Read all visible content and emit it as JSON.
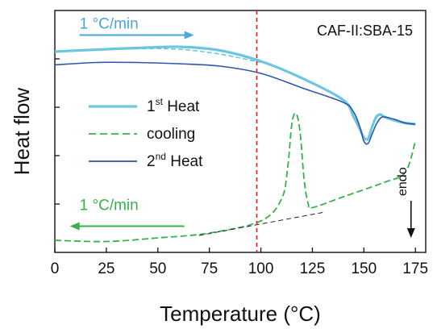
{
  "chart_data": {
    "type": "line",
    "title": "CAF-II:SBA-15",
    "xlabel": "Temperature (°C)",
    "ylabel": "Heat flow",
    "xlim": [
      0,
      180
    ],
    "ylim": [
      0,
      10
    ],
    "xticks": [
      "0",
      "25",
      "50",
      "75",
      "100",
      "125",
      "150",
      "175"
    ],
    "xtick_values": [
      0,
      25,
      50,
      75,
      100,
      125,
      150,
      175
    ],
    "ytick_values": [
      2,
      4,
      6,
      8
    ],
    "y_tick_labels_shown": false,
    "grid": false,
    "legend_position": "center-left",
    "legend": [
      {
        "text": "1",
        "sup": "st",
        "tail": " Heat",
        "series": "heat1"
      },
      {
        "text": "cooling",
        "sup": "",
        "tail": "",
        "series": "cooling"
      },
      {
        "text": "2",
        "sup": "nd",
        "tail": " Heat",
        "series": "heat2"
      }
    ],
    "series": [
      {
        "id": "heat1",
        "color": "#6cc6e0",
        "dash": "solid",
        "x": [
          0,
          20,
          40,
          60,
          80,
          100,
          120,
          140,
          145,
          148,
          150,
          152,
          154,
          156,
          158,
          160,
          165,
          170,
          175
        ],
        "y": [
          8.3,
          8.38,
          8.45,
          8.5,
          8.35,
          7.9,
          7.2,
          6.3,
          5.6,
          5.1,
          4.75,
          4.7,
          5.2,
          5.6,
          5.7,
          5.6,
          5.45,
          5.35,
          5.3
        ]
      },
      {
        "id": "heat1-dashed-segment",
        "color": "#6cc6e0",
        "dash": "dashed",
        "x": [
          0,
          20,
          40,
          60,
          80,
          100
        ],
        "y": [
          8.3,
          8.37,
          8.42,
          8.4,
          8.2,
          7.85
        ]
      },
      {
        "id": "cooling",
        "color": "#35b24a",
        "dash": "dashed",
        "x": [
          0,
          25,
          50,
          75,
          100,
          110,
          113,
          115,
          117,
          119,
          121,
          123,
          125,
          140,
          160,
          170,
          175
        ],
        "y": [
          0.5,
          0.45,
          0.6,
          0.8,
          1.3,
          2.2,
          3.5,
          5.3,
          5.75,
          5.0,
          3.0,
          2.0,
          1.85,
          2.3,
          2.9,
          3.3,
          4.6
        ]
      },
      {
        "id": "heat2",
        "color": "#2c56b0",
        "dash": "solid",
        "x": [
          0,
          20,
          40,
          60,
          80,
          100,
          120,
          140,
          145,
          148,
          150,
          152,
          154,
          156,
          158,
          160,
          165,
          170,
          175
        ],
        "y": [
          7.75,
          7.85,
          7.85,
          7.8,
          7.7,
          7.4,
          6.8,
          6.2,
          5.8,
          5.2,
          4.6,
          4.5,
          4.9,
          5.3,
          5.55,
          5.6,
          5.5,
          5.35,
          5.3
        ]
      },
      {
        "id": "baseline-extrapolation",
        "color": "#222222",
        "dash": "dashed",
        "x": [
          70,
          130
        ],
        "y": [
          0.7,
          1.65
        ]
      }
    ],
    "vertical_marker": {
      "x": 98,
      "color": "#e0202a",
      "dash": "dashed"
    },
    "annotations": [
      {
        "id": "heating-rate",
        "text": "1 °C/min",
        "color": "#4aa6de",
        "arrow": "right",
        "at_x": 12,
        "at_y": 9.25
      },
      {
        "id": "cooling-rate",
        "text": "1 °C/min",
        "color": "#35b24a",
        "arrow": "left",
        "at_x": 12,
        "at_y": 1.75
      },
      {
        "id": "endo",
        "text": "endo",
        "color": "#111111",
        "arrow": "down",
        "at_x": 176,
        "at_y": 2.4
      }
    ]
  }
}
